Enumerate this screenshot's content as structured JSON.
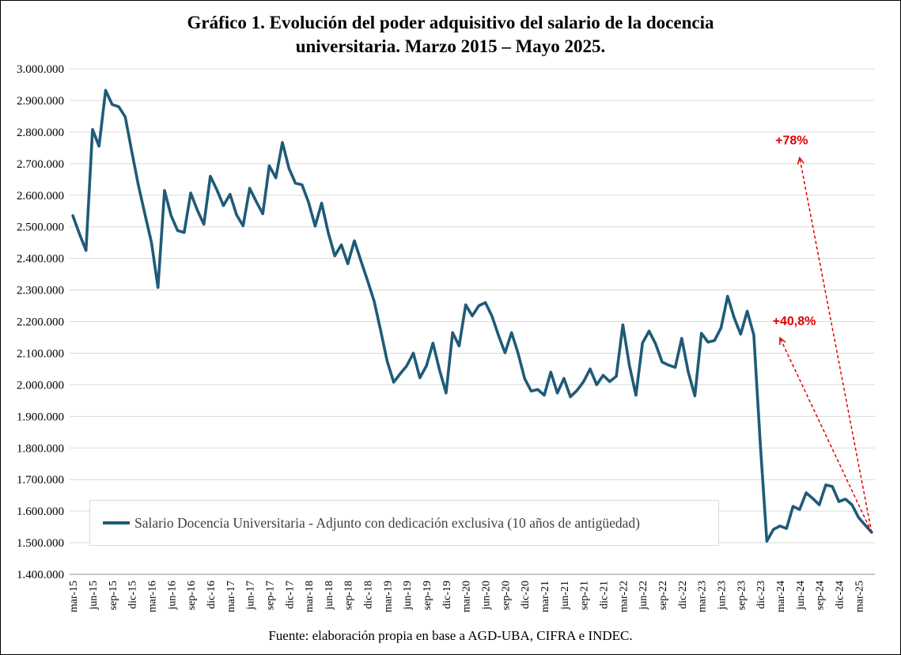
{
  "chart_data": {
    "type": "line",
    "title": [
      "Gráfico 1. Evolución del poder adquisitivo del salario de la docencia",
      "universitaria. Marzo 2015 – Mayo 2025."
    ],
    "source": "Fuente:  elaboración propia en base a AGD-UBA,  CIFRA  e INDEC.",
    "ylim": [
      1400000,
      3000000
    ],
    "y_ticks": [
      1400000,
      1500000,
      1600000,
      1700000,
      1800000,
      1900000,
      2000000,
      2100000,
      2200000,
      2300000,
      2400000,
      2500000,
      2600000,
      2700000,
      2800000,
      2900000,
      3000000
    ],
    "y_tick_labels": [
      "1.400.000",
      "1.500.000",
      "1.600.000",
      "1.700.000",
      "1.800.000",
      "1.900.000",
      "2.000.000",
      "2.100.000",
      "2.200.000",
      "2.300.000",
      "2.400.000",
      "2.500.000",
      "2.600.000",
      "2.700.000",
      "2.800.000",
      "2.900.000",
      "3.000.000"
    ],
    "x_tick_labels": [
      "mar-15",
      "jun-15",
      "sep-15",
      "dic-15",
      "mar-16",
      "jun-16",
      "sep-16",
      "dic-16",
      "mar-17",
      "jun-17",
      "sep-17",
      "dic-17",
      "mar-18",
      "jun-18",
      "sep-18",
      "dic-18",
      "mar-19",
      "jun-19",
      "sep-19",
      "dic-19",
      "mar-20",
      "jun-20",
      "sep-20",
      "dic-20",
      "mar-21",
      "jun-21",
      "sep-21",
      "dic-21",
      "mar-22",
      "jun-22",
      "sep-22",
      "dic-22",
      "mar-23",
      "jun-23",
      "sep-23",
      "dic-23",
      "mar-24",
      "jun-24",
      "sep-24",
      "dic-24",
      "mar-25"
    ],
    "grid": true,
    "legend_position": "bottom-left",
    "line_color": "#1f5b78",
    "annotation_color": "#e00000",
    "series": [
      {
        "name": "Salario Docencia Universitaria - Adjunto con dedicación exclusiva (10 años de antigüedad)",
        "values": [
          2535000,
          2478000,
          2425000,
          2808000,
          2755000,
          2932000,
          2887000,
          2880000,
          2848000,
          2738000,
          2632000,
          2540000,
          2450000,
          2308000,
          2615000,
          2535000,
          2488000,
          2482000,
          2607000,
          2553000,
          2508000,
          2660000,
          2617000,
          2567000,
          2603000,
          2538000,
          2503000,
          2622000,
          2580000,
          2541000,
          2693000,
          2655000,
          2767000,
          2685000,
          2638000,
          2633000,
          2577000,
          2502000,
          2575000,
          2482000,
          2408000,
          2443000,
          2383000,
          2456000,
          2392000,
          2330000,
          2265000,
          2173000,
          2075000,
          2008000,
          2035000,
          2060000,
          2100000,
          2022000,
          2060000,
          2132000,
          2047000,
          1974000,
          2165000,
          2123000,
          2253000,
          2218000,
          2250000,
          2260000,
          2218000,
          2157000,
          2101000,
          2165000,
          2100000,
          2020000,
          1980000,
          1985000,
          1967000,
          2040000,
          1974000,
          2020000,
          1962000,
          1982000,
          2010000,
          2050000,
          2000000,
          2030000,
          2010000,
          2027000,
          2190000,
          2062000,
          1967000,
          2132000,
          2170000,
          2130000,
          2072000,
          2062000,
          2055000,
          2147000,
          2040000,
          1965000,
          2163000,
          2135000,
          2140000,
          2180000,
          2280000,
          2212000,
          2160000,
          2233000,
          2158000,
          1810000,
          1505000,
          1542000,
          1553000,
          1545000,
          1615000,
          1605000,
          1658000,
          1640000,
          1620000,
          1683000,
          1678000,
          1630000,
          1638000,
          1620000,
          1580000,
          1556000,
          1533000
        ]
      }
    ],
    "annotations": [
      {
        "text": "+40,8%"
      },
      {
        "text": "+78%"
      }
    ]
  }
}
